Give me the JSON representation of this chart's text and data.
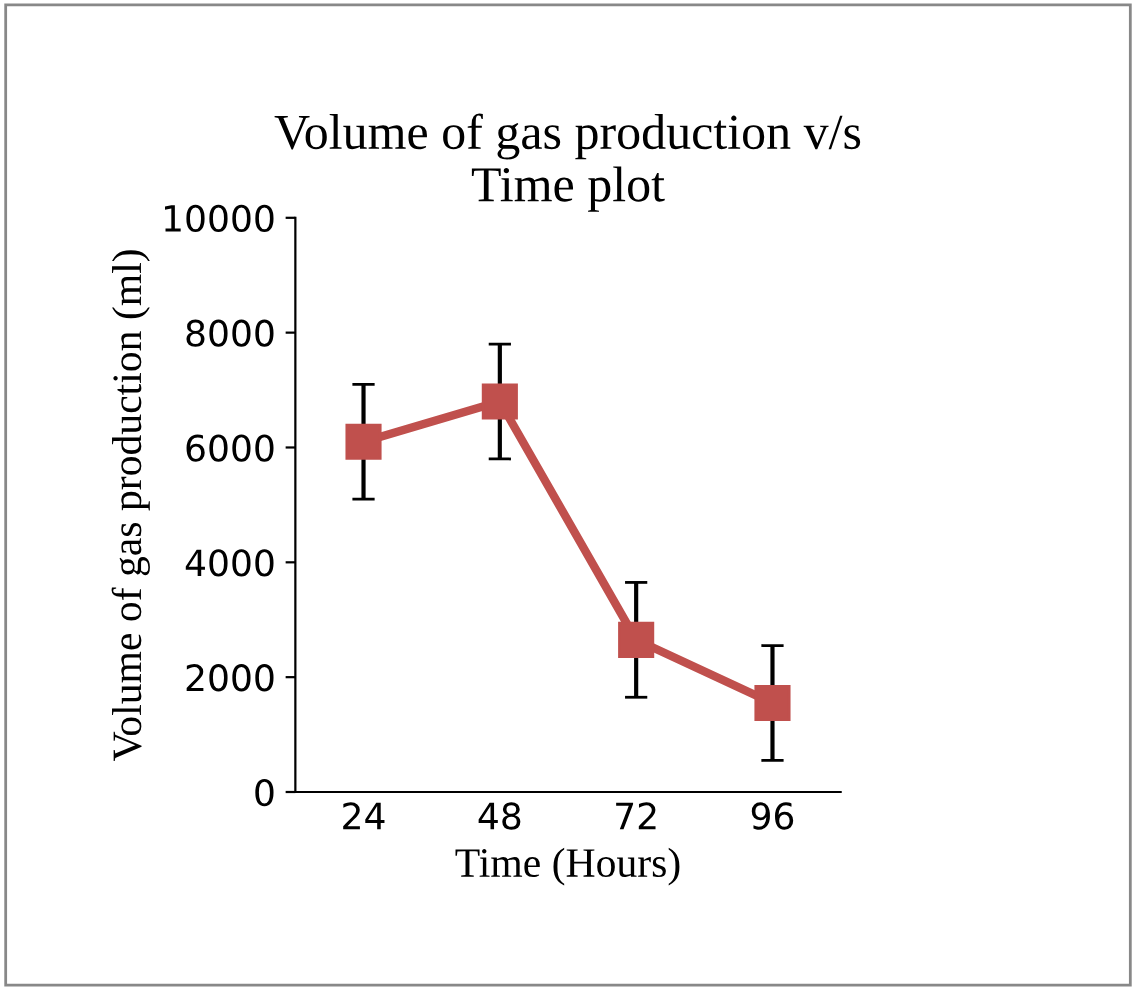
{
  "chart_data": {
    "type": "line",
    "title": "Volume of gas production v/s\nTime plot",
    "xlabel": "Time (Hours)",
    "ylabel": "Volume of gas production (ml)",
    "categories": [
      "24",
      "48",
      "72",
      "96"
    ],
    "series": [
      {
        "color": "#c0504d",
        "values": [
          6100,
          6800,
          2650,
          1550
        ],
        "errors": [
          1000,
          1000,
          1000,
          1000
        ]
      }
    ],
    "ylim": [
      0,
      10000
    ],
    "yticks": [
      0,
      2000,
      4000,
      6000,
      8000,
      10000
    ],
    "marker": "square",
    "line_style": "solid",
    "grid": false,
    "legend": false
  }
}
